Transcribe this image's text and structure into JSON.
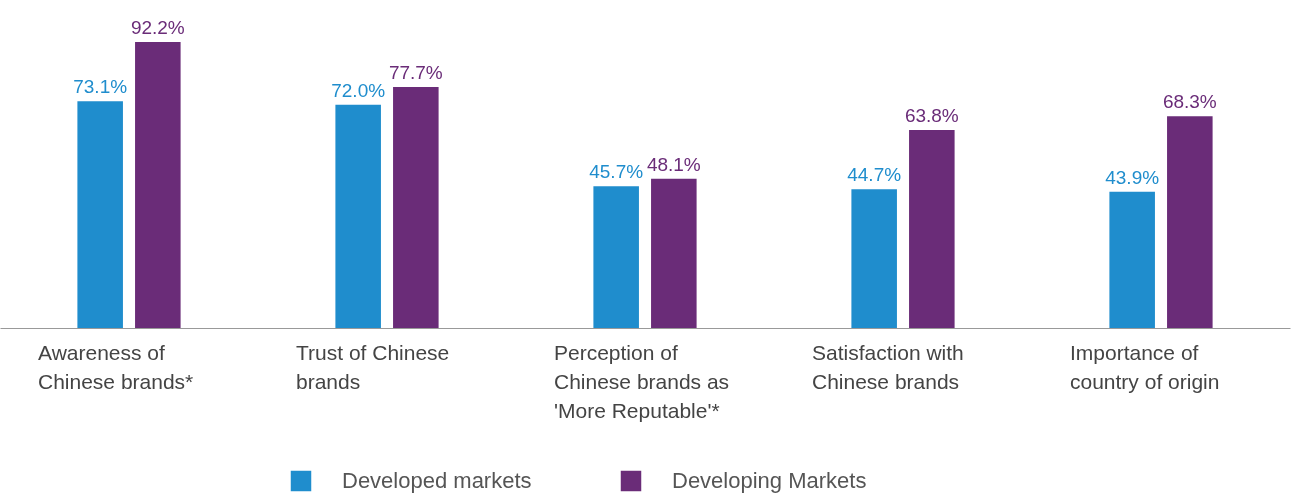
{
  "chart_data": {
    "type": "bar",
    "categories": [
      "Awareness of Chinese brands*",
      "Trust of Chinese brands",
      "Perception of Chinese brands as 'More Reputable'*",
      "Satisfaction with Chinese brands",
      "Importance of country of origin"
    ],
    "series": [
      {
        "name": "Developed markets",
        "color": "#1f8dcd",
        "values": [
          73.1,
          72.0,
          45.7,
          44.7,
          43.9
        ],
        "value_labels": [
          "73.1%",
          "72.0%",
          "45.7%",
          "44.7%",
          "43.9%"
        ]
      },
      {
        "name": "Developing Markets",
        "color": "#6a2c78",
        "values": [
          92.2,
          77.7,
          48.1,
          63.8,
          68.3
        ],
        "value_labels": [
          "92.2%",
          "77.7%",
          "48.1%",
          "63.8%",
          "68.3%"
        ]
      }
    ],
    "tick_labels": "x",
    "grid": false,
    "legend": "bottom"
  }
}
